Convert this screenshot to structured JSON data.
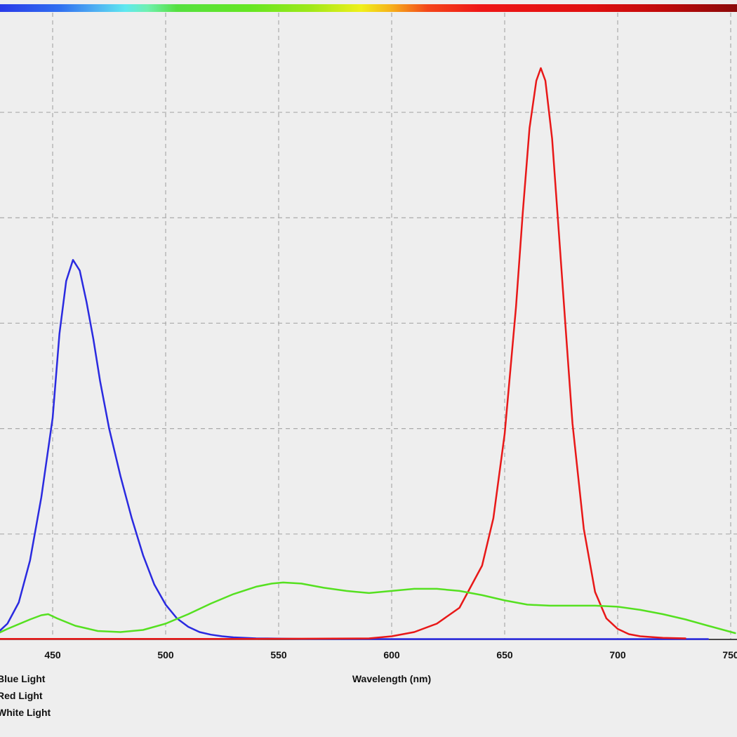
{
  "chart_data": {
    "type": "line",
    "title": "",
    "xlabel": "Wavelength (nm)",
    "ylabel": "",
    "xlim": [
      425,
      752
    ],
    "ylim": [
      0,
      5.4
    ],
    "x_ticks": [
      450,
      500,
      550,
      600,
      650,
      700,
      750
    ],
    "x_tick_labels": [
      "450",
      "500",
      "550",
      "600",
      "650",
      "700",
      "750"
    ],
    "y_gridlines": [
      1,
      2,
      3,
      4,
      5
    ],
    "grid": true,
    "legend_position": "bottom-left",
    "colors": {
      "spectrum_bar": "rainbow",
      "grid": "#aaaaaa",
      "axis": "#111111"
    },
    "series": [
      {
        "name": "Blue Light",
        "color": "#2a2ae0",
        "x": [
          425,
          430,
          435,
          440,
          445,
          450,
          453,
          456,
          459,
          462,
          465,
          468,
          471,
          475,
          480,
          485,
          490,
          495,
          500,
          505,
          510,
          515,
          520,
          525,
          530,
          540,
          560,
          580,
          600,
          650,
          700,
          740
        ],
        "y": [
          0.05,
          0.15,
          0.35,
          0.75,
          1.35,
          2.1,
          2.9,
          3.4,
          3.6,
          3.5,
          3.2,
          2.85,
          2.45,
          2.0,
          1.55,
          1.15,
          0.8,
          0.52,
          0.33,
          0.2,
          0.12,
          0.07,
          0.045,
          0.03,
          0.02,
          0.01,
          0.005,
          0.004,
          0.003,
          0.003,
          0.003,
          0.003
        ]
      },
      {
        "name": "Red Light",
        "color": "#e81818",
        "x": [
          425,
          540,
          590,
          600,
          610,
          620,
          630,
          640,
          645,
          650,
          655,
          658,
          661,
          664,
          666,
          668,
          671,
          674,
          677,
          680,
          685,
          690,
          695,
          700,
          705,
          710,
          720,
          730
        ],
        "y": [
          0.005,
          0.005,
          0.01,
          0.03,
          0.07,
          0.15,
          0.3,
          0.7,
          1.15,
          1.95,
          3.15,
          4.05,
          4.85,
          5.3,
          5.42,
          5.3,
          4.75,
          3.85,
          2.95,
          2.05,
          1.05,
          0.45,
          0.2,
          0.1,
          0.05,
          0.03,
          0.015,
          0.01
        ]
      },
      {
        "name": "White Light",
        "color": "#55e020",
        "x": [
          425,
          430,
          440,
          445,
          448,
          452,
          460,
          470,
          480,
          490,
          500,
          510,
          520,
          530,
          540,
          547,
          552,
          560,
          570,
          580,
          590,
          600,
          610,
          620,
          630,
          640,
          650,
          660,
          670,
          680,
          690,
          700,
          710,
          720,
          730,
          740,
          752
        ],
        "y": [
          0.05,
          0.1,
          0.19,
          0.23,
          0.24,
          0.2,
          0.13,
          0.08,
          0.07,
          0.09,
          0.15,
          0.24,
          0.34,
          0.43,
          0.5,
          0.53,
          0.54,
          0.53,
          0.49,
          0.46,
          0.44,
          0.46,
          0.48,
          0.48,
          0.46,
          0.42,
          0.37,
          0.33,
          0.32,
          0.32,
          0.32,
          0.31,
          0.28,
          0.24,
          0.19,
          0.13,
          0.06
        ]
      }
    ]
  }
}
